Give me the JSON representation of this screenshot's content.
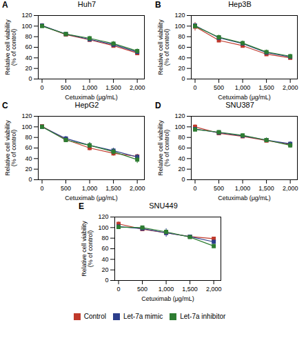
{
  "chart_data": [
    {
      "type": "line",
      "title": "Huh7",
      "annotations": [
        "A"
      ],
      "xlabel": "Cetuximab (μg/mL)",
      "ylabel": "Relative cell viability\n(% of control)",
      "x": [
        0,
        500,
        1000,
        1500,
        2000
      ],
      "marker": "square",
      "grid": false,
      "series": [
        {
          "name": "Control",
          "color": "#c0392b",
          "values": [
            101,
            84,
            74,
            63,
            49
          ],
          "errors": [
            4,
            3,
            4,
            4,
            4
          ]
        },
        {
          "name": "Let-7a mimic",
          "color": "#2c3e8c",
          "values": [
            101,
            85,
            75,
            65,
            51
          ],
          "errors": [
            3,
            3,
            3,
            4,
            4
          ]
        },
        {
          "name": "Let-7a inhibitor",
          "color": "#2e7d32",
          "values": [
            100,
            85,
            77,
            67,
            53
          ],
          "errors": [
            3,
            3,
            4,
            4,
            4
          ]
        }
      ],
      "xlim": [
        -80,
        2150
      ],
      "xticks": [
        0,
        500,
        {
          "value": 1000,
          "label": "1,000"
        },
        {
          "value": 1500,
          "label": "1,500"
        },
        {
          "value": 2000,
          "label": "2,000"
        }
      ],
      "ylim": [
        0,
        120
      ],
      "yticks": [
        0,
        20,
        40,
        60,
        80,
        100,
        120
      ]
    },
    {
      "type": "line",
      "title": "Hep3B",
      "annotations": [
        "B"
      ],
      "xlabel": "Cetuximab (μg/mL)",
      "ylabel": "Relative cell viability\n(% of control)",
      "x": [
        0,
        500,
        1000,
        1500,
        2000
      ],
      "marker": "square",
      "grid": false,
      "series": [
        {
          "name": "Control",
          "color": "#c0392b",
          "values": [
            99,
            73,
            63,
            47,
            40
          ],
          "errors": [
            8,
            4,
            3,
            4,
            3
          ]
        },
        {
          "name": "Let-7a mimic",
          "color": "#2c3e8c",
          "values": [
            101,
            78,
            67,
            50,
            42
          ],
          "errors": [
            4,
            4,
            4,
            4,
            4
          ]
        },
        {
          "name": "Let-7a inhibitor",
          "color": "#2e7d32",
          "values": [
            100,
            79,
            68,
            51,
            43
          ],
          "errors": [
            4,
            4,
            4,
            4,
            4
          ]
        }
      ],
      "xlim": [
        -80,
        2150
      ],
      "xticks": [
        0,
        500,
        {
          "value": 1000,
          "label": "1,000"
        },
        {
          "value": 1500,
          "label": "1,500"
        },
        {
          "value": 2000,
          "label": "2,000"
        }
      ],
      "ylim": [
        0,
        120
      ],
      "yticks": [
        0,
        20,
        40,
        60,
        80,
        100,
        120
      ]
    },
    {
      "type": "line",
      "title": "HepG2",
      "annotations": [
        "C"
      ],
      "xlabel": "Cetuximab (μg/mL)",
      "ylabel": "Relative cell viability\n(% of control)",
      "x": [
        0,
        500,
        1000,
        1500,
        2000
      ],
      "marker": "square",
      "grid": false,
      "series": [
        {
          "name": "Control",
          "color": "#c0392b",
          "values": [
            101,
            76,
            60,
            50,
            44
          ],
          "errors": [
            2,
            4,
            5,
            5,
            4
          ]
        },
        {
          "name": "Let-7a mimic",
          "color": "#2c3e8c",
          "values": [
            100,
            78,
            65,
            55,
            43
          ],
          "errors": [
            3,
            4,
            5,
            5,
            5
          ]
        },
        {
          "name": "Let-7a inhibitor",
          "color": "#2e7d32",
          "values": [
            100,
            75,
            65,
            53,
            38
          ],
          "errors": [
            3,
            4,
            5,
            6,
            7
          ]
        }
      ],
      "xlim": [
        -80,
        2150
      ],
      "xticks": [
        0,
        500,
        {
          "value": 1000,
          "label": "1,000"
        },
        {
          "value": 1500,
          "label": "1,500"
        },
        {
          "value": 2000,
          "label": "2,000"
        }
      ],
      "ylim": [
        0,
        120
      ],
      "yticks": [
        0,
        20,
        40,
        60,
        80,
        100,
        120
      ]
    },
    {
      "type": "line",
      "title": "SNU387",
      "annotations": [
        "D"
      ],
      "xlabel": "Cetuximab (μg/mL)",
      "ylabel": "Relative cell viability\n(% of control)",
      "x": [
        0,
        500,
        1000,
        1500,
        2000
      ],
      "marker": "square",
      "grid": false,
      "series": [
        {
          "name": "Control",
          "color": "#c0392b",
          "values": [
            100,
            88,
            82,
            74,
            67
          ],
          "errors": [
            4,
            3,
            4,
            4,
            4
          ]
        },
        {
          "name": "Let-7a mimic",
          "color": "#2c3e8c",
          "values": [
            96,
            89,
            83,
            75,
            68
          ],
          "errors": [
            3,
            3,
            3,
            4,
            4
          ]
        },
        {
          "name": "Let-7a inhibitor",
          "color": "#2e7d32",
          "values": [
            95,
            90,
            84,
            75,
            65
          ],
          "errors": [
            3,
            3,
            3,
            4,
            5
          ]
        }
      ],
      "xlim": [
        -80,
        2150
      ],
      "xticks": [
        0,
        500,
        {
          "value": 1000,
          "label": "1,000"
        },
        {
          "value": 1500,
          "label": "1,500"
        },
        {
          "value": 2000,
          "label": "2,000"
        }
      ],
      "ylim": [
        0,
        120
      ],
      "yticks": [
        0,
        20,
        40,
        60,
        80,
        100,
        120
      ]
    },
    {
      "type": "line",
      "title": "SNU449",
      "annotations": [
        "E"
      ],
      "xlabel": "Cetuximab (μg/mL)",
      "ylabel": "Relative cell viability\n(% of control)",
      "x": [
        0,
        500,
        1000,
        1500,
        2000
      ],
      "marker": "square",
      "grid": false,
      "legend": "bottom",
      "series": [
        {
          "name": "Control",
          "color": "#c0392b",
          "values": [
            107,
            97,
            90,
            83,
            79
          ],
          "errors": [
            4,
            3,
            4,
            3,
            3
          ]
        },
        {
          "name": "Let-7a mimic",
          "color": "#2c3e8c",
          "values": [
            102,
            98,
            90,
            83,
            73
          ],
          "errors": [
            3,
            3,
            8,
            3,
            3
          ]
        },
        {
          "name": "Let-7a inhibitor",
          "color": "#2e7d32",
          "values": [
            101,
            100,
            92,
            82,
            65
          ],
          "errors": [
            3,
            3,
            3,
            3,
            4
          ]
        }
      ],
      "xlim": [
        -80,
        2150
      ],
      "xticks": [
        0,
        500,
        {
          "value": 1000,
          "label": "1,000"
        },
        {
          "value": 1500,
          "label": "1,500"
        },
        {
          "value": 2000,
          "label": "2,000"
        }
      ],
      "ylim": [
        0,
        120
      ],
      "yticks": [
        0,
        20,
        40,
        60,
        80,
        100,
        120
      ]
    }
  ]
}
